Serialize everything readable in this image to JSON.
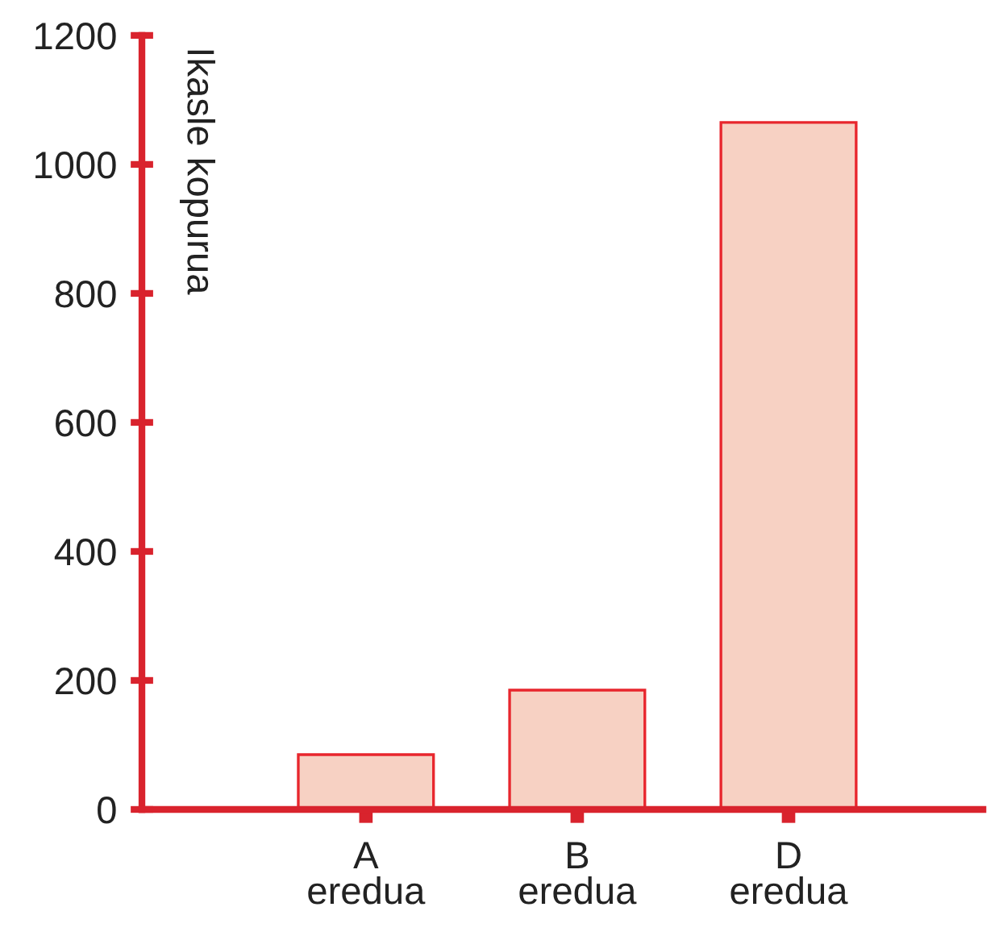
{
  "chart_data": {
    "type": "bar",
    "ylabel": "Ikasle kopurua",
    "categories": [
      "A\neredua",
      "B\neredua",
      "D\neredua"
    ],
    "values": [
      85,
      185,
      1065
    ],
    "color": "#f7d1c3",
    "ylim": [
      0,
      1200
    ],
    "yticks": [
      0,
      200,
      400,
      600,
      800,
      1000,
      1200
    ],
    "grid": false,
    "legend": false
  }
}
